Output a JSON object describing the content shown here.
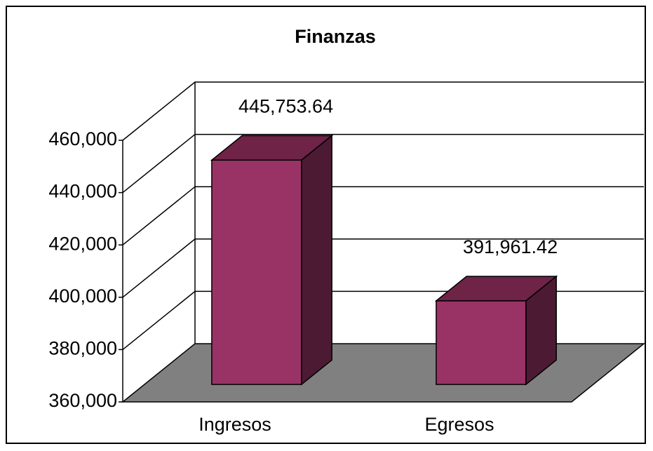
{
  "chart_data": {
    "type": "bar3d",
    "title": "Finanzas",
    "categories": [
      "Ingresos",
      "Egresos"
    ],
    "values": [
      445753.64,
      391961.42
    ],
    "value_labels": [
      "445,753.64",
      "391,961.42"
    ],
    "color": "#993366",
    "ylim": [
      360000,
      460000
    ],
    "yticks": [
      {
        "value": 360000,
        "label": "360,000"
      },
      {
        "value": 380000,
        "label": "380,000"
      },
      {
        "value": 400000,
        "label": "400,000"
      },
      {
        "value": 420000,
        "label": "420,000"
      },
      {
        "value": 440000,
        "label": "440,000"
      },
      {
        "value": 460000,
        "label": "460,000"
      }
    ],
    "grid": true
  }
}
